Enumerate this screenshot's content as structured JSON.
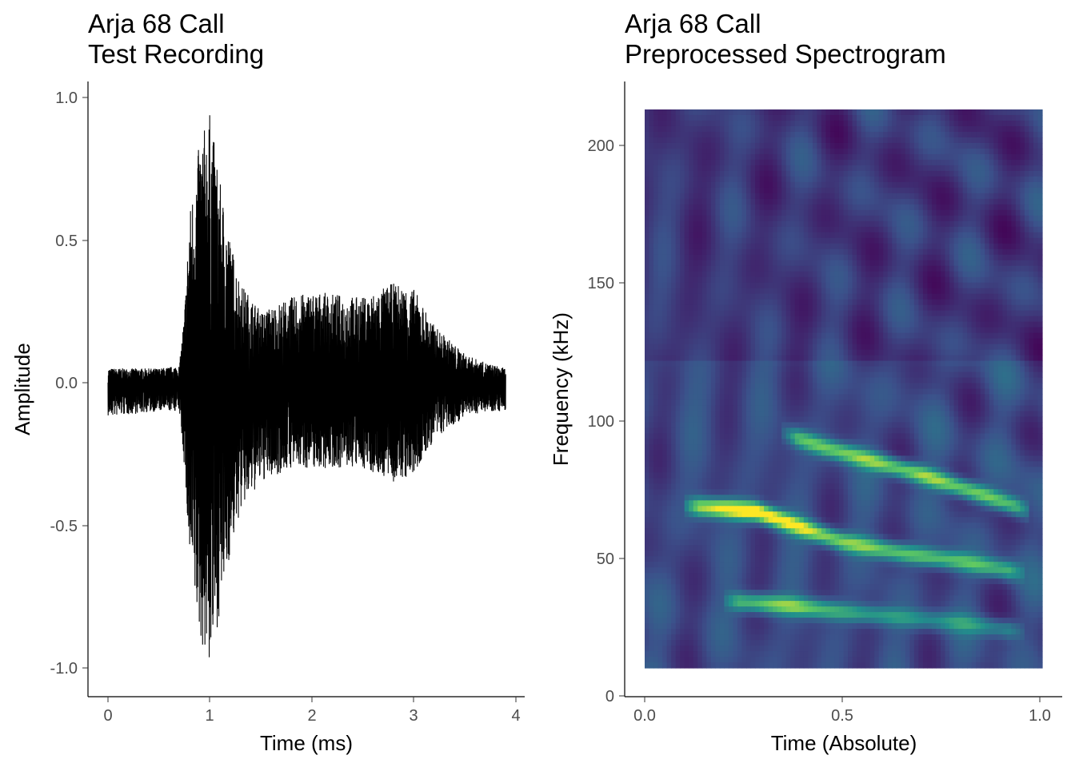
{
  "chart_data": [
    {
      "type": "line",
      "title": "Arja 68 Call",
      "subtitle": "Test Recording",
      "xlabel": "Time (ms)",
      "ylabel": "Amplitude",
      "xlim": [
        0,
        4
      ],
      "ylim": [
        -1.0,
        1.0
      ],
      "xticks": [
        "0",
        "1",
        "2",
        "3",
        "4"
      ],
      "yticks": [
        "1.0",
        "0.5",
        "0.0",
        "-0.5",
        "-1.0"
      ],
      "grid": false,
      "line_color": "#000000",
      "envelope": {
        "x": [
          0.0,
          0.5,
          0.7,
          0.75,
          0.8,
          0.9,
          1.0,
          1.1,
          1.2,
          1.3,
          1.5,
          1.8,
          2.0,
          2.5,
          2.8,
          3.0,
          3.2,
          3.5,
          3.7,
          3.9
        ],
        "upper": [
          0.05,
          0.05,
          0.06,
          0.25,
          0.6,
          0.85,
          0.95,
          0.7,
          0.5,
          0.35,
          0.25,
          0.3,
          0.32,
          0.3,
          0.35,
          0.33,
          0.2,
          0.1,
          0.07,
          0.05
        ],
        "lower": [
          -0.12,
          -0.1,
          -0.1,
          -0.3,
          -0.65,
          -0.9,
          -1.0,
          -0.8,
          -0.6,
          -0.45,
          -0.35,
          -0.3,
          -0.3,
          -0.3,
          -0.35,
          -0.33,
          -0.2,
          -0.12,
          -0.1,
          -0.1
        ]
      }
    },
    {
      "type": "heatmap",
      "title": "Arja 68 Call",
      "subtitle": "Preprocessed Spectrogram",
      "xlabel": "Time (Absolute)",
      "ylabel": "Frequency (kHz)",
      "xlim": [
        0.0,
        1.0
      ],
      "ylim": [
        0,
        210
      ],
      "xticks": [
        "0.0",
        "0.5",
        "1.0"
      ],
      "yticks": [
        "200",
        "150",
        "100",
        "50",
        "0"
      ],
      "grid": false,
      "colormap": [
        "#440154",
        "#3b528b",
        "#21908c",
        "#5dc863",
        "#fde725"
      ],
      "background_level": 0.22,
      "harmonics": [
        {
          "t": [
            0.1,
            0.2,
            0.28,
            0.36,
            0.5,
            0.65,
            0.8,
            0.95
          ],
          "f": [
            68,
            67,
            66,
            62,
            55,
            51,
            48,
            44
          ],
          "w": [
            0.5,
            0.85,
            1.0,
            0.8,
            0.6,
            0.55,
            0.5,
            0.42
          ]
        },
        {
          "t": [
            0.35,
            0.45,
            0.55,
            0.7,
            0.85,
            0.97
          ],
          "f": [
            94,
            89,
            85,
            79,
            72,
            66
          ],
          "w": [
            0.45,
            0.55,
            0.6,
            0.65,
            0.62,
            0.45
          ]
        },
        {
          "t": [
            0.2,
            0.3,
            0.38,
            0.5,
            0.65,
            0.8,
            0.95
          ],
          "f": [
            34,
            33,
            32,
            30,
            28,
            26,
            23
          ],
          "w": [
            0.35,
            0.6,
            0.6,
            0.4,
            0.3,
            0.3,
            0.28
          ]
        }
      ]
    }
  ]
}
